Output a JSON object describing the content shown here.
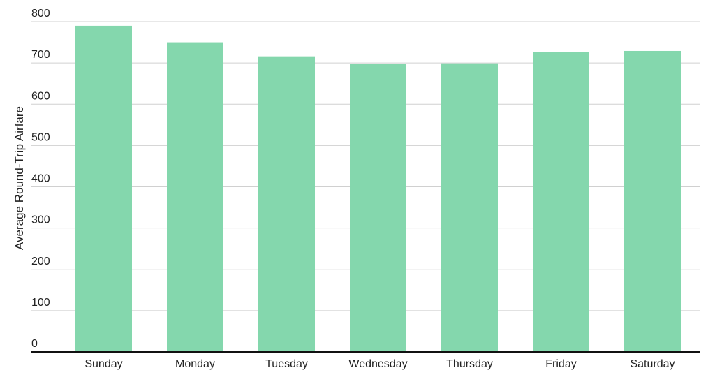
{
  "chart_data": {
    "type": "bar",
    "title": "",
    "xlabel": "",
    "ylabel": "Average Round-Trip Airfare",
    "categories": [
      "Sunday",
      "Monday",
      "Tuesday",
      "Wednesday",
      "Thursday",
      "Friday",
      "Saturday"
    ],
    "values": [
      790,
      750,
      716,
      697,
      699,
      727,
      729
    ],
    "ylim": [
      0,
      800
    ],
    "yticks": [
      0,
      100,
      200,
      300,
      400,
      500,
      600,
      700,
      800
    ],
    "grid": true,
    "legend": "none",
    "colors": {
      "bar": "#84d7ad",
      "grid": "#d0d0d0",
      "baseline": "#111111",
      "text": "#222222"
    }
  }
}
